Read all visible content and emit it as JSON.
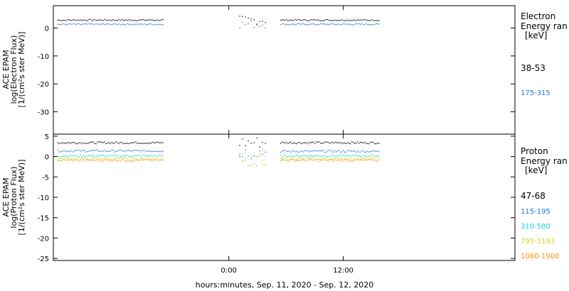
{
  "chart_data": [
    {
      "type": "scatter",
      "panel": "electron",
      "ylabel": [
        "ACE EPAM",
        "log(Electron Flux)",
        "[1/(cm²s ster MeV)]"
      ],
      "ylim": [
        -38,
        8
      ],
      "yticks": [
        0,
        -10,
        -20,
        -30
      ],
      "xticks": [
        "0:00",
        "12:00"
      ],
      "legend_title": [
        "Electron",
        "Energy ran",
        "[keV]"
      ],
      "series": [
        {
          "name": "38-53",
          "color": "#000000",
          "segments": [
            [
              -18.0,
              -6.9,
              3.0
            ],
            [
              1.1,
              3.9,
              3.0
            ],
            [
              5.4,
              15.8,
              3.0
            ]
          ]
        },
        {
          "name": "175-315",
          "color": "#1f77d4",
          "segments": [
            [
              -18.0,
              -6.9,
              1.5
            ],
            [
              1.1,
              3.9,
              1.5
            ],
            [
              5.4,
              15.8,
              1.5
            ]
          ]
        }
      ]
    },
    {
      "type": "scatter",
      "panel": "proton",
      "ylabel": [
        "ACE EPAM",
        "log(Proton Flux)",
        "[1/(cm²s ster MeV)]"
      ],
      "ylim": [
        -25.5,
        5.5
      ],
      "yticks": [
        5,
        0,
        -5,
        -10,
        -15,
        -20,
        -25
      ],
      "xticks": [
        "0:00",
        "12:00"
      ],
      "legend_title": [
        "Proton",
        "Energy ran",
        "[keV]"
      ],
      "series": [
        {
          "name": "47-68",
          "color": "#000000",
          "segments": [
            [
              -18.0,
              -6.9,
              3.5
            ],
            [
              1.1,
              3.9,
              3.6
            ],
            [
              5.4,
              15.8,
              3.5
            ]
          ]
        },
        {
          "name": "115-195",
          "color": "#1f77d4",
          "segments": [
            [
              -18.0,
              -6.9,
              1.5
            ],
            [
              1.1,
              3.9,
              1.2
            ],
            [
              5.4,
              15.8,
              1.4
            ]
          ]
        },
        {
          "name": "310-580",
          "color": "#17d4d4",
          "segments": [
            [
              -18.0,
              -6.9,
              0.3
            ],
            [
              1.1,
              3.9,
              0.4
            ],
            [
              5.4,
              15.8,
              0.3
            ]
          ]
        },
        {
          "name": "795-1193",
          "color": "#d4d417",
          "segments": [
            [
              -18.0,
              -6.9,
              -0.4
            ],
            [
              1.1,
              3.9,
              -0.2
            ],
            [
              5.4,
              15.8,
              -0.4
            ]
          ]
        },
        {
          "name": "1060-1900",
          "color": "#ff8c00",
          "segments": [
            [
              -18.0,
              -6.9,
              -0.8
            ],
            [
              1.1,
              3.9,
              -0.8
            ],
            [
              5.4,
              15.8,
              -0.8
            ]
          ]
        }
      ]
    }
  ],
  "xlabel": "hours:minutes, Sep. 11, 2020 - Sep. 12, 2020"
}
